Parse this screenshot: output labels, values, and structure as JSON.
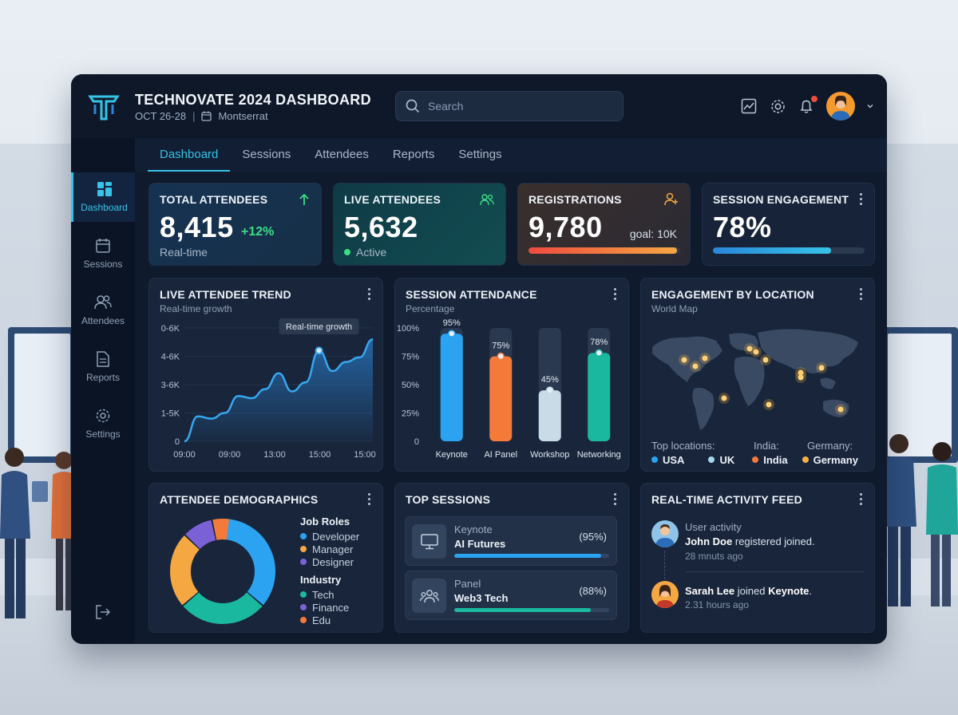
{
  "app": {
    "title": "TECHNOVATE 2024 DASHBOARD",
    "dates": "OCT 26-28",
    "separator": "|",
    "venue": "Montserrat"
  },
  "search": {
    "placeholder": "Search"
  },
  "tabs": [
    {
      "label": "Dashboard"
    },
    {
      "label": "Sessions"
    },
    {
      "label": "Attendees"
    },
    {
      "label": "Reports"
    },
    {
      "label": "Settings"
    }
  ],
  "sidebar": {
    "items": [
      {
        "label": "Dashboard",
        "icon": "grid-icon"
      },
      {
        "label": "Sessions",
        "icon": "calendar-icon"
      },
      {
        "label": "Attendees",
        "icon": "users-icon"
      },
      {
        "label": "Reports",
        "icon": "document-icon"
      },
      {
        "label": "Settings",
        "icon": "gear-icon"
      }
    ]
  },
  "kpis": {
    "total": {
      "title": "TOTAL ATTENDEES",
      "value": "8,415",
      "delta": "+12%",
      "foot": "Real-time"
    },
    "live": {
      "title": "LIVE ATTENDEES",
      "value": "5,632",
      "foot": "Active"
    },
    "registrations": {
      "title": "REGISTRATIONS",
      "value": "9,780",
      "goal": "goal: 10K",
      "progress": 0.978
    },
    "engagement": {
      "title": "SESSION ENGAGEMENT",
      "value": "78%",
      "progress": 0.78
    }
  },
  "trend": {
    "title": "LIVE ATTENDEE TREND",
    "subtitle": "Real-time growth",
    "tooltip": "Real-time growth",
    "chart_data": {
      "type": "area",
      "y_ticks": [
        "0-6K",
        "4-6K",
        "3-6K",
        "1-5K",
        "0"
      ],
      "x_ticks": [
        "09:00",
        "09:00",
        "13:00",
        "15:00",
        "15:00"
      ],
      "values": [
        0.0,
        0.22,
        0.2,
        0.25,
        0.4,
        0.38,
        0.46,
        0.6,
        0.44,
        0.52,
        0.8,
        0.62,
        0.7,
        0.74,
        0.9
      ],
      "highlight_index": 10
    }
  },
  "attendance": {
    "title": "SESSION ATTENDANCE",
    "subtitle": "Percentage",
    "chart_data": {
      "type": "bar",
      "y_ticks": [
        "100%",
        "75%",
        "50%",
        "25%",
        "0"
      ],
      "categories": [
        "Keynote",
        "AI Panel",
        "Workshop",
        "Networking"
      ],
      "values": [
        95,
        75,
        45,
        78
      ],
      "labels": [
        "95%",
        "75%",
        "45%",
        "78%"
      ],
      "ylim": [
        0,
        100
      ]
    },
    "colors": [
      "#2ba3f0",
      "#f47a3a",
      "#c8dbe6",
      "#1bb8a0"
    ]
  },
  "location": {
    "title": "ENGAGEMENT BY LOCATION",
    "subtitle": "World Map",
    "top_label": "Top locations:",
    "india_label": "India:",
    "germany_label": "Germany:",
    "countries": [
      {
        "name": "USA",
        "color": "#2ba3f0"
      },
      {
        "name": "UK",
        "color": "#a6d8ee"
      },
      {
        "name": "India",
        "color": "#f47a3a"
      },
      {
        "name": "Germany",
        "color": "#f5b342"
      }
    ]
  },
  "demographics": {
    "title": "ATTENDEE DEMOGRAPHICS",
    "job_roles_title": "Job Roles",
    "job_roles": [
      {
        "label": "Developer",
        "color": "#2ba3f0"
      },
      {
        "label": "Manager",
        "color": "#f5a742"
      },
      {
        "label": "Designer",
        "color": "#7a62d6"
      }
    ],
    "industry_title": "Industry",
    "industry": [
      {
        "label": "Tech",
        "color": "#1bb8a0"
      },
      {
        "label": "Finance",
        "color": "#7a62d6"
      },
      {
        "label": "Edu",
        "color": "#f47a3a"
      }
    ],
    "donut": [
      {
        "value": 36,
        "color": "#2ba3f0"
      },
      {
        "value": 27,
        "color": "#1bb8a0"
      },
      {
        "value": 23,
        "color": "#f5a742"
      },
      {
        "value": 9,
        "color": "#7a62d6"
      },
      {
        "value": 5,
        "color": "#f47a3a"
      }
    ]
  },
  "top_sessions": {
    "title": "TOP SESSIONS",
    "items": [
      {
        "kind": "Keynote",
        "name": "AI Futures",
        "pct": "(95%)",
        "progress": 0.95,
        "color": "#2ba3f0"
      },
      {
        "kind": "Panel",
        "name": "Web3 Tech",
        "pct": "(88%)",
        "progress": 0.88,
        "color": "#1bb8a0"
      }
    ]
  },
  "feed": {
    "title": "REAL-TIME ACTIVITY FEED",
    "items": [
      {
        "heading": "User activity",
        "name": "John Doe",
        "text": "registered joined.",
        "time": "28 mnuts ago"
      },
      {
        "name": "Sarah Lee",
        "text": "joined",
        "target": "Keynote",
        "time": "2.31 hours ago"
      }
    ]
  }
}
